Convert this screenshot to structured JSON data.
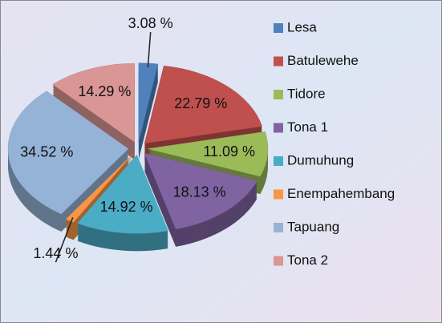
{
  "chart_data": {
    "type": "pie",
    "categories": [
      "Lesa",
      "Batulewehe",
      "Tidore",
      "Tona 1",
      "Dumuhung",
      "Enempahembang",
      "Tapuang",
      "Tona 2"
    ],
    "values": [
      3.08,
      22.79,
      11.09,
      18.13,
      14.92,
      1.44,
      34.52,
      14.29
    ],
    "value_labels": [
      "3.08 %",
      "22.79 %",
      "11.09 %",
      "18.13 %",
      "14.92 %",
      "1.44 %",
      "34.52 %",
      "14.29 %"
    ],
    "colors": [
      "#4f81bd",
      "#c0504d",
      "#9bbb59",
      "#8064a2",
      "#4bacc6",
      "#f79646",
      "#95b3d7",
      "#d99694"
    ],
    "legend": "right"
  }
}
